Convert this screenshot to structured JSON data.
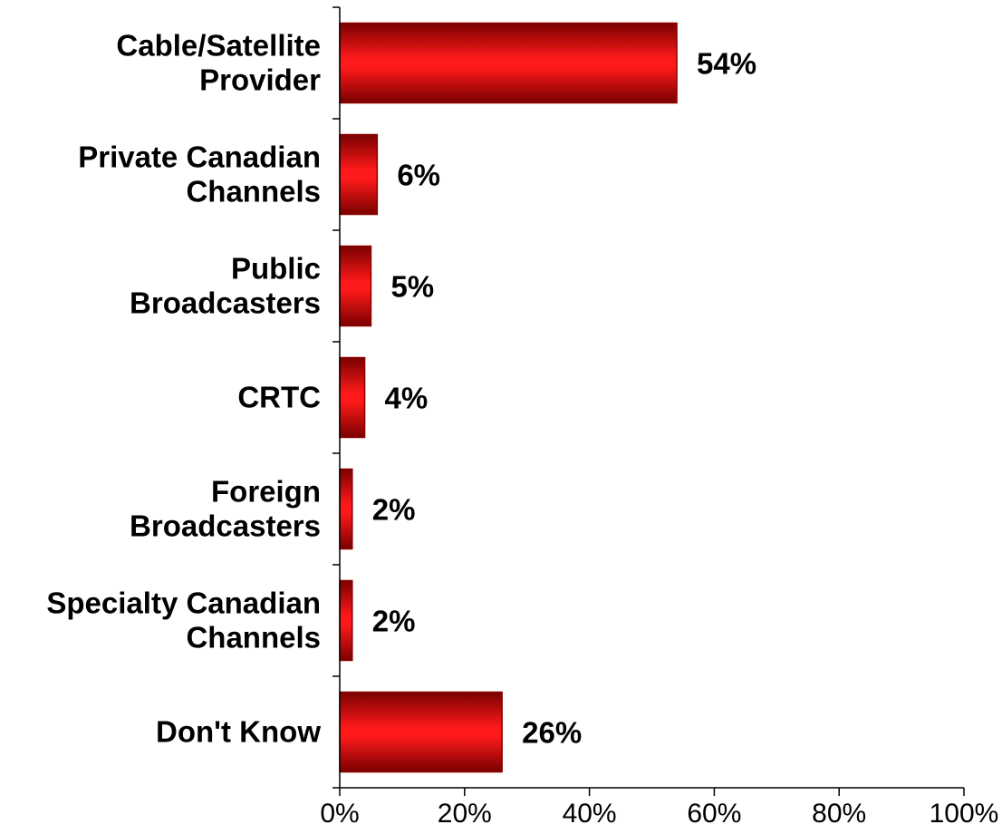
{
  "chart_data": {
    "type": "bar",
    "orientation": "horizontal",
    "categories": [
      [
        "Cable/Satellite",
        "Provider"
      ],
      [
        "Private Canadian",
        "Channels"
      ],
      [
        "Public",
        "Broadcasters"
      ],
      [
        "CRTC"
      ],
      [
        "Foreign",
        "Broadcasters"
      ],
      [
        "Specialty Canadian",
        "Channels"
      ],
      [
        "Don't Know"
      ]
    ],
    "values": [
      54,
      6,
      5,
      4,
      2,
      2,
      26
    ],
    "value_labels": [
      "54%",
      "6%",
      "5%",
      "4%",
      "2%",
      "2%",
      "26%"
    ],
    "xlim": [
      0,
      100
    ],
    "xticks": [
      0,
      20,
      40,
      60,
      80,
      100
    ],
    "xtick_labels": [
      "0%",
      "20%",
      "40%",
      "60%",
      "80%",
      "100%"
    ],
    "title": "",
    "xlabel": "",
    "ylabel": "",
    "grid": false,
    "legend": "none",
    "colors": {
      "bar_edge": "#8a0000",
      "bar_dark": "#7a0000",
      "bar_light": "#ff1a1a",
      "axis": "#000000"
    }
  }
}
